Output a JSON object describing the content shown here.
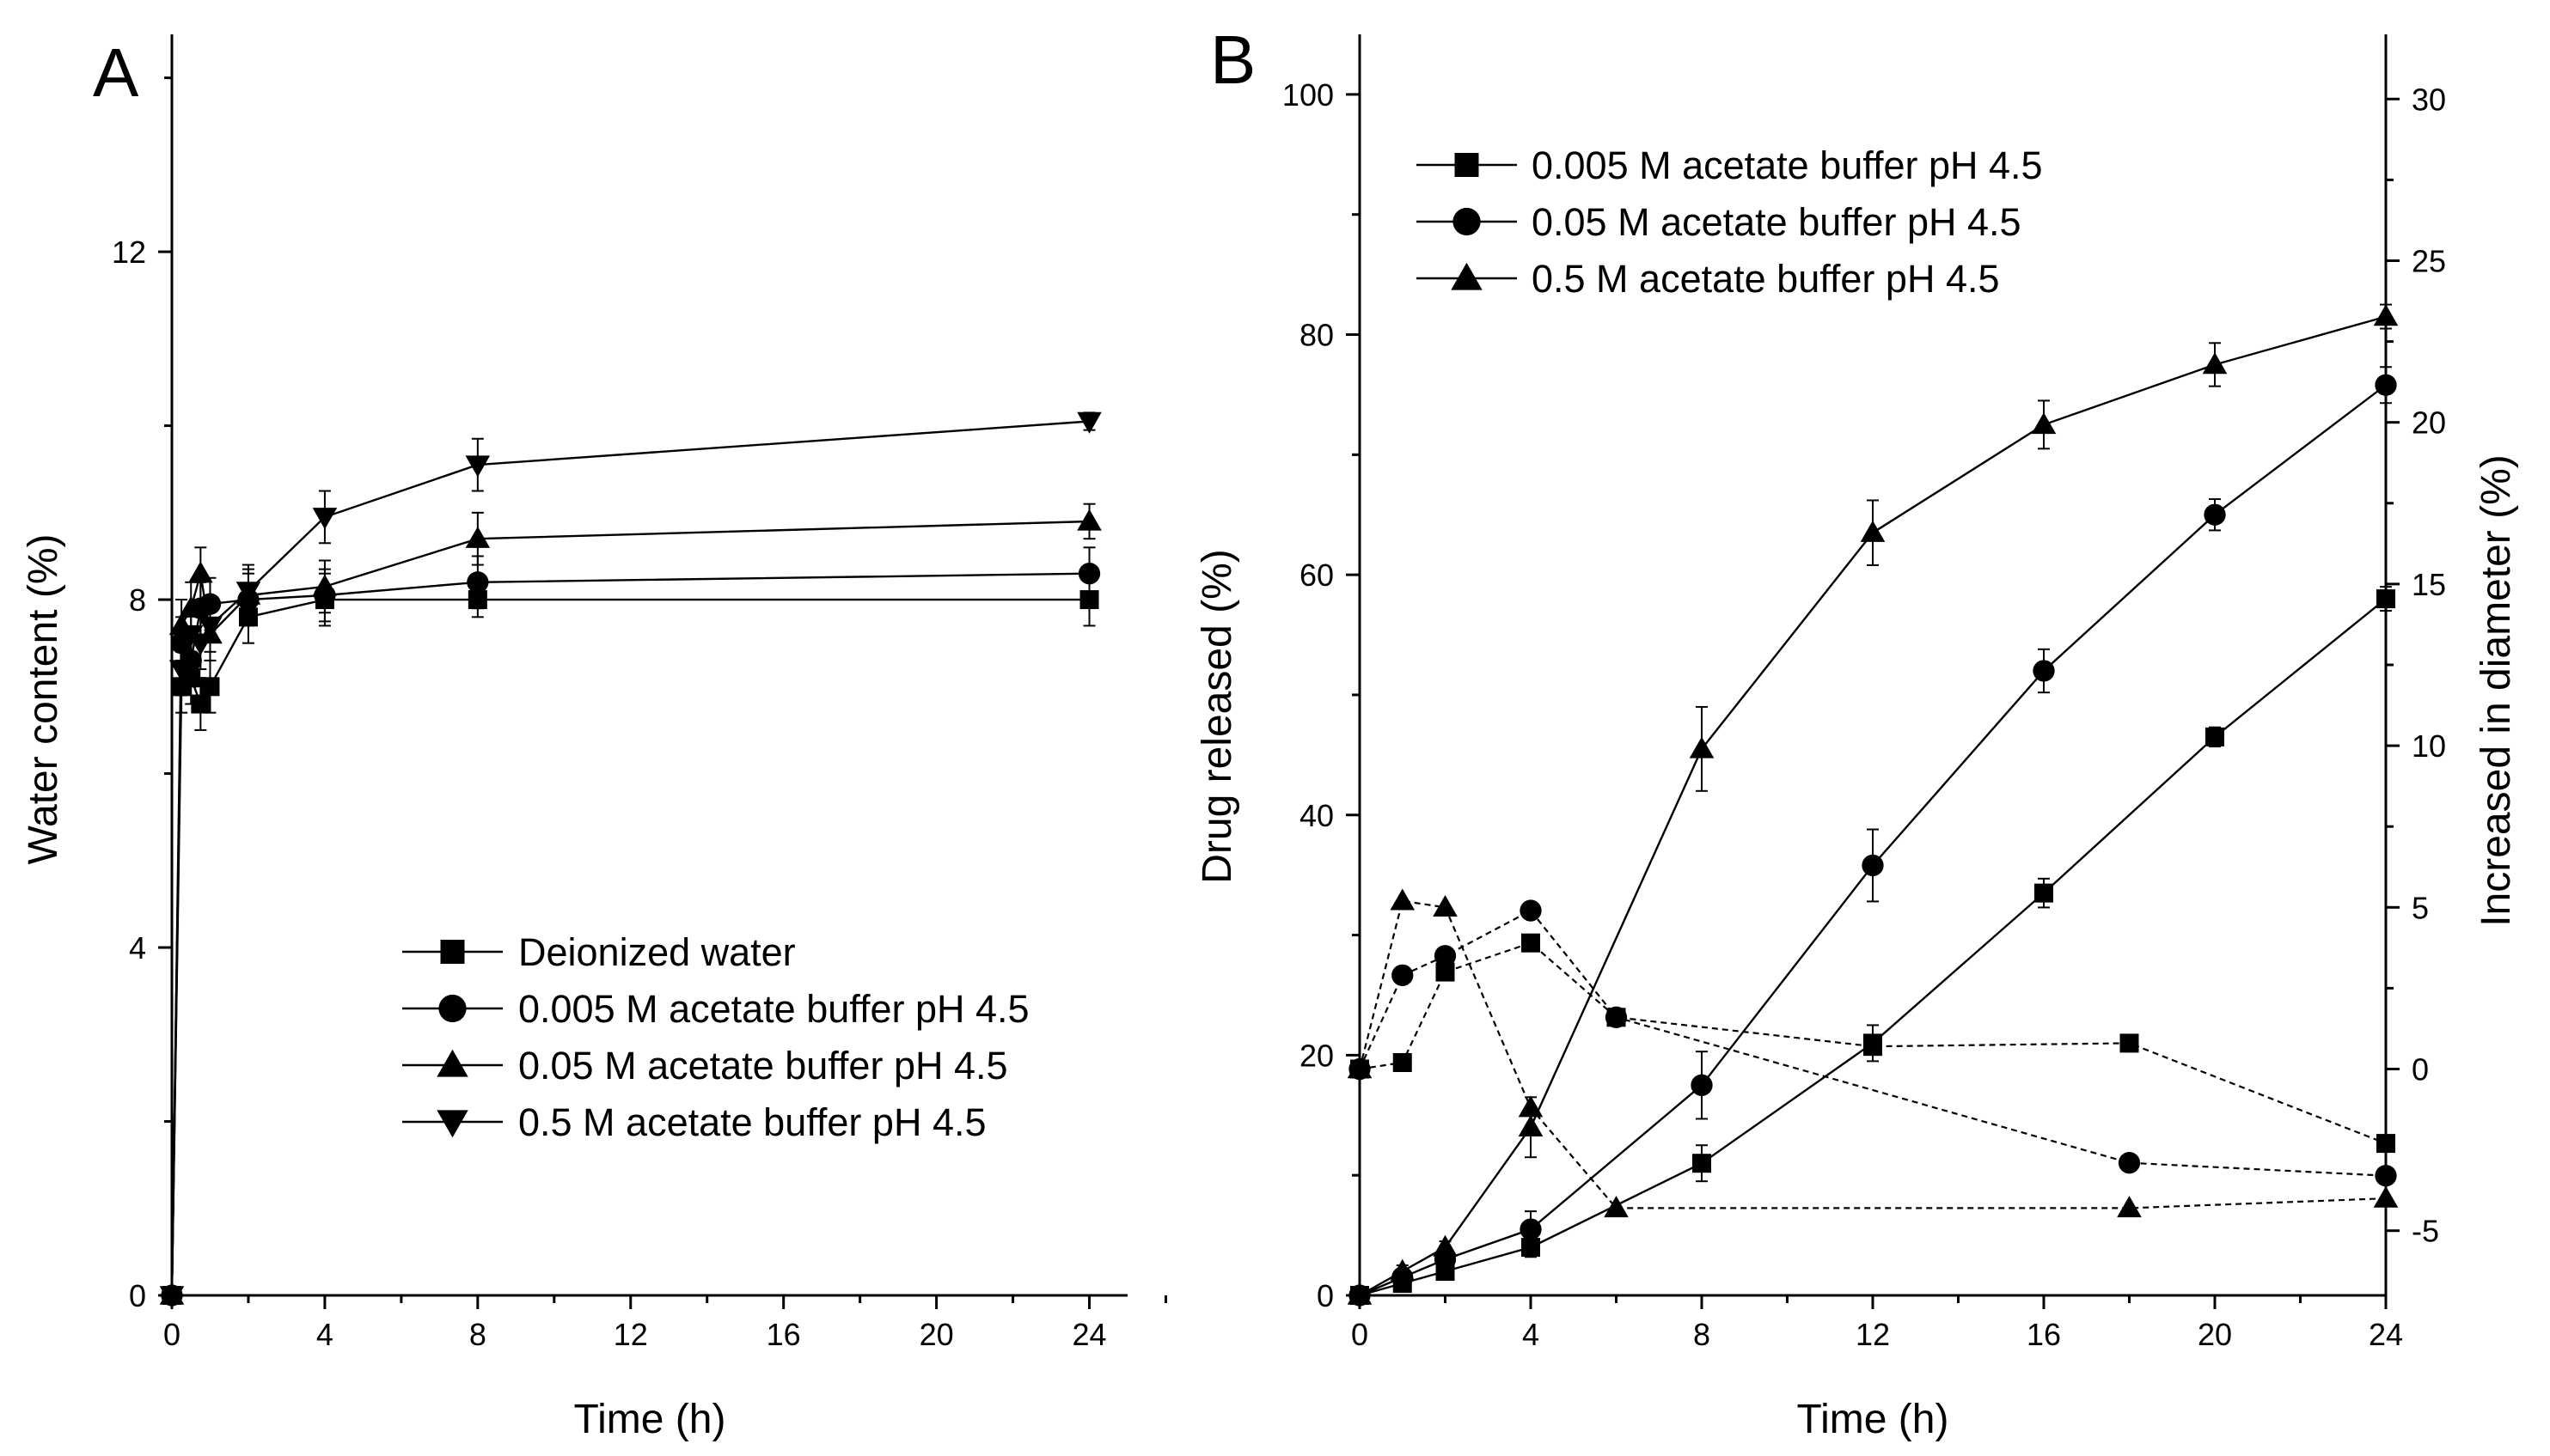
{
  "chart_data": [
    {
      "panel": "A",
      "type": "line",
      "xlabel": "Time (h)",
      "ylabel": "Water content (%)",
      "xlim": [
        0,
        25
      ],
      "ylim": [
        0,
        14.5
      ],
      "xticks": [
        0,
        4,
        8,
        12,
        16,
        20,
        24
      ],
      "yticks": [
        0,
        4,
        8,
        12
      ],
      "series": [
        {
          "name": "Deionized water",
          "marker": "square",
          "x": [
            0,
            0.25,
            0.5,
            0.75,
            1,
            2,
            4,
            8,
            24
          ],
          "y": [
            0,
            7.0,
            7.1,
            6.8,
            7.0,
            7.8,
            8.0,
            8.0,
            8.0
          ],
          "err": [
            0,
            0.3,
            0.3,
            0.3,
            0.3,
            0.3,
            0.3,
            0.2,
            0.3
          ]
        },
        {
          "name": "0.005 M acetate buffer pH 4.5",
          "marker": "circle",
          "x": [
            0,
            0.25,
            0.5,
            0.75,
            1,
            2,
            4,
            8,
            24
          ],
          "y": [
            0,
            7.5,
            7.3,
            7.9,
            7.95,
            8.0,
            8.05,
            8.2,
            8.3
          ],
          "err": [
            0,
            0.3,
            0.3,
            0.3,
            0.3,
            0.3,
            0.3,
            0.3,
            0.3
          ]
        },
        {
          "name": "0.05 M acetate buffer pH 4.5",
          "marker": "triangle-up",
          "x": [
            0,
            0.25,
            0.5,
            0.75,
            1,
            2,
            4,
            8,
            24
          ],
          "y": [
            0,
            7.7,
            7.9,
            8.3,
            7.6,
            8.05,
            8.15,
            8.7,
            8.9
          ],
          "err": [
            0,
            0.3,
            0.3,
            0.3,
            0.3,
            0.3,
            0.3,
            0.3,
            0.2
          ]
        },
        {
          "name": "0.5 M acetate buffer pH 4.5",
          "marker": "triangle-down",
          "x": [
            0,
            0.25,
            0.5,
            0.75,
            1,
            2,
            4,
            8,
            24
          ],
          "y": [
            0,
            7.2,
            7.6,
            7.5,
            7.7,
            8.1,
            8.95,
            9.55,
            10.05
          ],
          "err": [
            0,
            0.3,
            0.3,
            0.3,
            0.3,
            0.3,
            0.3,
            0.3,
            0.1
          ]
        }
      ],
      "legend": [
        "Deionized water",
        "0.005 M acetate buffer pH 4.5",
        "0.05 M acetate buffer pH 4.5",
        "0.5 M acetate buffer pH 4.5"
      ]
    },
    {
      "panel": "B",
      "type": "line",
      "xlabel": "Time (h)",
      "ylabel": "Drug released (%)",
      "y2label": "Increased in diameter (%)",
      "xlim": [
        0,
        24
      ],
      "ylim": [
        0,
        105
      ],
      "y2lim": [
        -7,
        32
      ],
      "xticks": [
        0,
        4,
        8,
        12,
        16,
        20,
        24
      ],
      "yticks": [
        0,
        20,
        40,
        60,
        80,
        100
      ],
      "y2ticks": [
        -5,
        0,
        5,
        10,
        15,
        20,
        25,
        30
      ],
      "series": [
        {
          "name": "0.005 M acetate buffer pH 4.5",
          "axis": "left",
          "style": "solid",
          "marker": "square",
          "x": [
            0,
            1,
            2,
            4,
            8,
            12,
            16,
            20,
            24
          ],
          "y": [
            0,
            1,
            2,
            4,
            11,
            21,
            33.5,
            46.5,
            58
          ],
          "err": [
            0,
            0.5,
            0.5,
            0.8,
            1.5,
            1.5,
            1.2,
            0.8,
            1.0
          ]
        },
        {
          "name": "0.05 M acetate buffer pH 4.5",
          "axis": "left",
          "style": "solid",
          "marker": "circle",
          "x": [
            0,
            1,
            2,
            4,
            8,
            12,
            16,
            20,
            24
          ],
          "y": [
            0,
            1.5,
            3,
            5.5,
            17.5,
            35.8,
            52,
            65,
            75.8
          ],
          "err": [
            0,
            0.5,
            0.5,
            1.5,
            2.8,
            3.0,
            1.8,
            1.3,
            1.5
          ]
        },
        {
          "name": "0.5 M acetate buffer pH 4.5",
          "axis": "left",
          "style": "solid",
          "marker": "triangle-up",
          "x": [
            0,
            1,
            2,
            4,
            8,
            12,
            16,
            20,
            24
          ],
          "y": [
            0,
            2,
            4,
            14,
            45.5,
            63.5,
            72.5,
            77.5,
            81.5
          ],
          "err": [
            0,
            0.5,
            0.5,
            2.5,
            3.5,
            2.7,
            2.0,
            1.8,
            1.0
          ]
        },
        {
          "name": "0.005 M acetate buffer pH 4.5",
          "axis": "right",
          "style": "dashed",
          "marker": "square",
          "x": [
            0,
            1,
            2,
            4,
            6,
            12,
            18,
            24
          ],
          "y": [
            0,
            0.2,
            3.0,
            3.9,
            1.6,
            0.7,
            0.8,
            -2.3
          ]
        },
        {
          "name": "0.05 M acetate buffer pH 4.5",
          "axis": "right",
          "style": "dashed",
          "marker": "circle",
          "x": [
            0,
            1,
            2,
            4,
            6,
            18,
            24
          ],
          "y": [
            0,
            2.9,
            3.5,
            4.9,
            1.6,
            -2.9,
            -3.3
          ]
        },
        {
          "name": "0.5 M acetate buffer pH 4.5",
          "axis": "right",
          "style": "dashed",
          "marker": "triangle-up",
          "x": [
            0,
            1,
            2,
            4,
            6,
            18,
            24
          ],
          "y": [
            0,
            5.2,
            5.0,
            -1.2,
            -4.3,
            -4.3,
            -4.0
          ]
        }
      ],
      "legend": [
        "0.005 M acetate buffer pH 4.5",
        "0.05 M acetate buffer pH 4.5",
        "0.5 M acetate buffer pH 4.5"
      ]
    }
  ]
}
